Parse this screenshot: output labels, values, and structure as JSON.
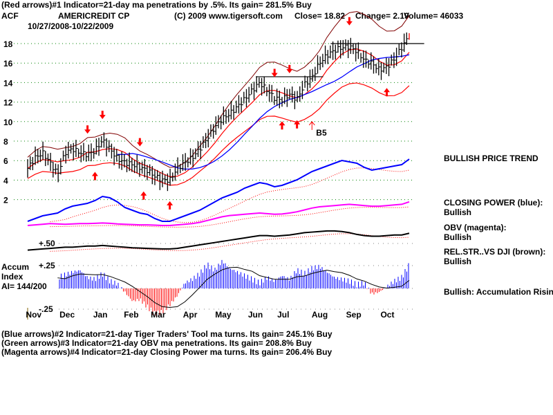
{
  "header": {
    "indicator1": "(Red arrows)#1 Indicator=21-day ma penetrations by .5%. Its gain= 281.5% Buy",
    "ticker": "ACF",
    "company": "AMERICREDIT CP",
    "copyright": "(C) 2009 www.tigersoft.com",
    "close": "Close=  18.82",
    "change": "Change= 2.19",
    "volume": "Volume= 46033",
    "date_range": "10/27/2008-10/22/2009"
  },
  "footer": {
    "indicator2": "(Blue arrows)#2 Indicator=21-day Tiger Traders' Tool ma turns. Its gain= 245.1% Buy",
    "indicator3": "(Green arrows)#3 Indicator=21-day OBV ma penetrations. Its gain= 208.8% Buy",
    "indicator4": "(Magenta arrows)#4 Indicator=21-day Closing Power ma turns. Its gain= 206.4% Buy"
  },
  "side_labels": {
    "price_trend": "BULLISH PRICE TREND",
    "closing_power": "CLOSING POWER (blue):",
    "closing_power_status": "Bullish",
    "obv": "OBV (magenta):",
    "obv_status": "Bullish",
    "relstr": "REL.STR..VS DJI (brown):",
    "relstr_status": "Bullish",
    "accum": "Bullish: Accumulation Rising"
  },
  "accum_panel": {
    "title1": "Accum",
    "title2": "Index",
    "ai": "AI= 144/200",
    "plus50": "+.50",
    "plus25": "+.25",
    "minus25": "-.25"
  },
  "colors": {
    "price": "#000000",
    "ma21": "#ff0000",
    "band_upper": "#800000",
    "ma_long": "#0000ff",
    "closing_power": "#0000ff",
    "obv": "#ff00ff",
    "relstr": "#000000",
    "accum_pos": "#0000ff",
    "accum_neg": "#ff0000",
    "grid_price": "#008000",
    "grid_other": "#808080",
    "arrows": "#ff0000"
  },
  "chart_data": {
    "type": "line",
    "title": "ACF AMERICREDIT CP",
    "price_ticks": [
      "18",
      "16",
      "14",
      "12",
      "10",
      "8",
      "6",
      "4",
      "2"
    ],
    "price_tick_values": [
      18,
      16,
      14,
      12,
      10,
      8,
      6,
      4,
      2
    ],
    "months": [
      "Nov",
      "Dec",
      "Jan",
      "Feb",
      "Mar",
      "Apr",
      "May",
      "Jun",
      "Jul",
      "Aug",
      "Sep",
      "Oct"
    ],
    "month_start_week": [
      0.5,
      5,
      9.5,
      13.6,
      17.2,
      21.5,
      25.8,
      30.2,
      34.1,
      38.7,
      43.3,
      47.9
    ],
    "weekly_close": [
      5.2,
      6.3,
      6.8,
      5.8,
      4.6,
      6.8,
      7.2,
      6.8,
      6.6,
      7.0,
      8.1,
      7.2,
      6.2,
      5.8,
      5.6,
      5.3,
      5.0,
      4.4,
      4.0,
      4.0,
      5.2,
      5.8,
      6.3,
      7.2,
      8.3,
      9.4,
      10.3,
      10.8,
      11.5,
      12.3,
      13.2,
      14.0,
      13.2,
      12.4,
      12.2,
      12.8,
      12.3,
      13.8,
      14.5,
      16.0,
      16.8,
      17.3,
      17.6,
      17.7,
      17.2,
      16.3,
      16.0,
      15.3,
      15.6,
      16.4,
      17.6,
      18.82
    ],
    "closing_power": [
      10,
      14,
      18,
      20,
      22,
      28,
      32,
      34,
      36,
      40,
      46,
      44,
      38,
      30,
      26,
      22,
      20,
      14,
      10,
      10,
      14,
      18,
      22,
      26,
      32,
      38,
      44,
      48,
      52,
      58,
      62,
      66,
      64,
      60,
      62,
      66,
      70,
      76,
      82,
      86,
      90,
      94,
      98,
      96,
      94,
      88,
      84,
      86,
      88,
      90,
      92,
      100
    ],
    "obv": [
      20,
      22,
      24,
      26,
      25,
      24,
      25,
      26,
      26,
      27,
      28,
      27,
      25,
      24,
      23,
      22,
      22,
      21,
      20,
      20,
      22,
      24,
      26,
      30,
      36,
      42,
      48,
      52,
      54,
      56,
      58,
      60,
      58,
      56,
      57,
      60,
      64,
      70,
      76,
      80,
      82,
      84,
      86,
      88,
      86,
      84,
      82,
      82,
      84,
      86,
      88,
      96
    ],
    "relstr": [
      20,
      22,
      24,
      26,
      28,
      30,
      30,
      32,
      34,
      34,
      36,
      34,
      32,
      30,
      28,
      27,
      26,
      25,
      24,
      24,
      26,
      30,
      34,
      38,
      42,
      46,
      50,
      54,
      58,
      62,
      66,
      70,
      70,
      68,
      70,
      72,
      76,
      80,
      82,
      84,
      86,
      86,
      84,
      80,
      74,
      70,
      68,
      68,
      70,
      72,
      72,
      78
    ],
    "accum_index": [
      0.2,
      0.02,
      0.1,
      0.14,
      0.12,
      0.15,
      0.18,
      0.2,
      0.12,
      0.1,
      0.16,
      0.08,
      0.05,
      -0.04,
      -0.14,
      -0.12,
      -0.2,
      -0.28,
      -0.26,
      -0.18,
      -0.08,
      0.06,
      0.1,
      0.16,
      0.26,
      0.2,
      0.3,
      0.22,
      0.18,
      0.14,
      0.1,
      0.06,
      0.12,
      0.08,
      0.14,
      0.1,
      0.2,
      0.16,
      0.22,
      0.24,
      0.18,
      0.12,
      0.1,
      0.08,
      0.04,
      0.06,
      -0.06,
      -0.04,
      0.02,
      0.08,
      0.12,
      0.26
    ],
    "signals": [
      {
        "week": 8,
        "type": "sell"
      },
      {
        "week": 10,
        "type": "sell"
      },
      {
        "week": 9,
        "type": "buy"
      },
      {
        "week": 15,
        "type": "sell"
      },
      {
        "week": 15.5,
        "type": "buy"
      },
      {
        "week": 19,
        "type": "buy"
      },
      {
        "week": 33,
        "type": "sell"
      },
      {
        "week": 35,
        "type": "sell"
      },
      {
        "week": 34,
        "type": "buy"
      },
      {
        "week": 36,
        "type": "buy"
      },
      {
        "week": 43,
        "type": "sell"
      },
      {
        "week": 48,
        "type": "buy"
      }
    ],
    "resistance_lines": [
      {
        "value": 18,
        "from_week": 40.5,
        "to_week": 53
      },
      {
        "value": 14.6,
        "from_week": 30.5,
        "to_week": 39.5
      }
    ],
    "annotation": {
      "label": "B5",
      "week": 38,
      "value": 9
    }
  }
}
